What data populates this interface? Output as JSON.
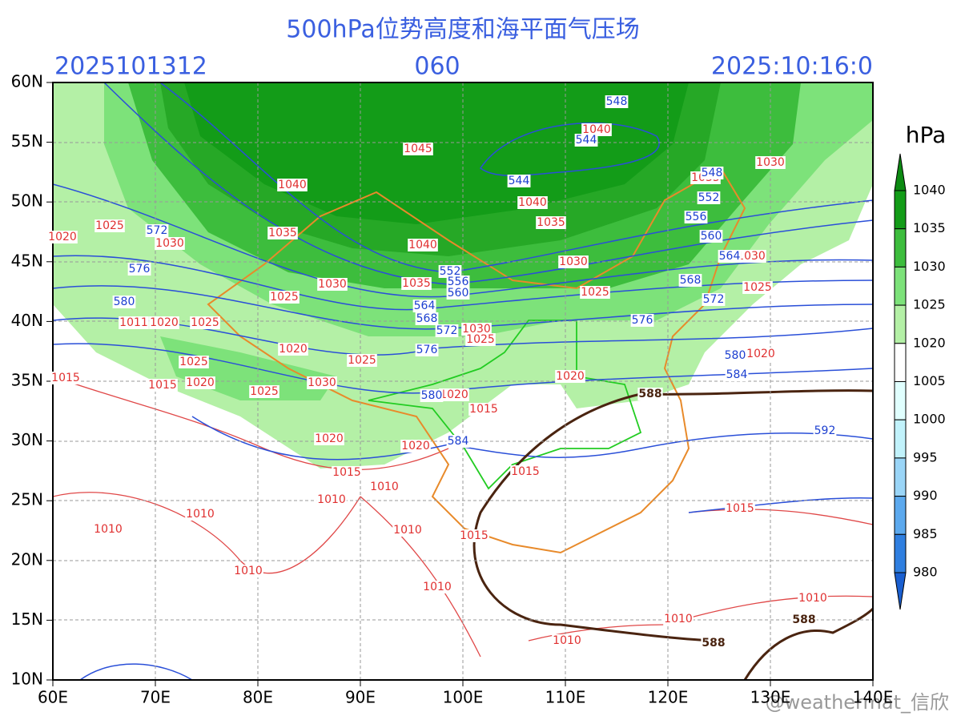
{
  "title": "500hPa位势高度和海平面气压场",
  "header": {
    "init_time": "2025101312",
    "forecast_hour": "060",
    "valid_time": "2025:10:16:0"
  },
  "lon_labels": [
    "60E",
    "70E",
    "80E",
    "90E",
    "100E",
    "110E",
    "120E",
    "130E",
    "140E"
  ],
  "lat_labels": [
    "60N",
    "55N",
    "50N",
    "45N",
    "40N",
    "35N",
    "30N",
    "25N",
    "20N",
    "15N",
    "10N"
  ],
  "colorbar": {
    "unit": "hPa",
    "labels": [
      "1040",
      "1035",
      "1030",
      "1025",
      "1020",
      "1005",
      "1000",
      "995",
      "990",
      "985",
      "980"
    ]
  },
  "height_labels": [
    "548",
    "544",
    "544",
    "548",
    "552",
    "556",
    "560",
    "564",
    "568",
    "572",
    "576",
    "580",
    "584",
    "592",
    "572",
    "576",
    "580",
    "552",
    "556",
    "560",
    "564",
    "568",
    "572",
    "576",
    "580",
    "584"
  ],
  "pressure_labels": [
    "1040",
    "1045",
    "1040",
    "1040",
    "1035",
    "1040",
    "1035",
    "1025",
    "1030",
    "1020",
    "1030",
    "1035",
    "1030",
    "1025",
    "1025",
    "1030",
    "1025",
    "1030",
    "1035",
    "1020",
    "1011",
    "1025",
    "1030",
    "1025",
    "1020",
    "1025",
    "1025",
    "1015",
    "1020",
    "1015",
    "1025",
    "1030",
    "1020",
    "1020",
    "1020",
    "1015",
    "1020",
    "1020",
    "1015",
    "1015",
    "1010",
    "1010",
    "1010",
    "1010",
    "1010",
    "1015",
    "1010",
    "1010",
    "1015",
    "1010",
    "1010",
    "1010"
  ],
  "ridge_labels": [
    "588",
    "588",
    "588"
  ],
  "watermark": "@weathermat_信欣"
}
